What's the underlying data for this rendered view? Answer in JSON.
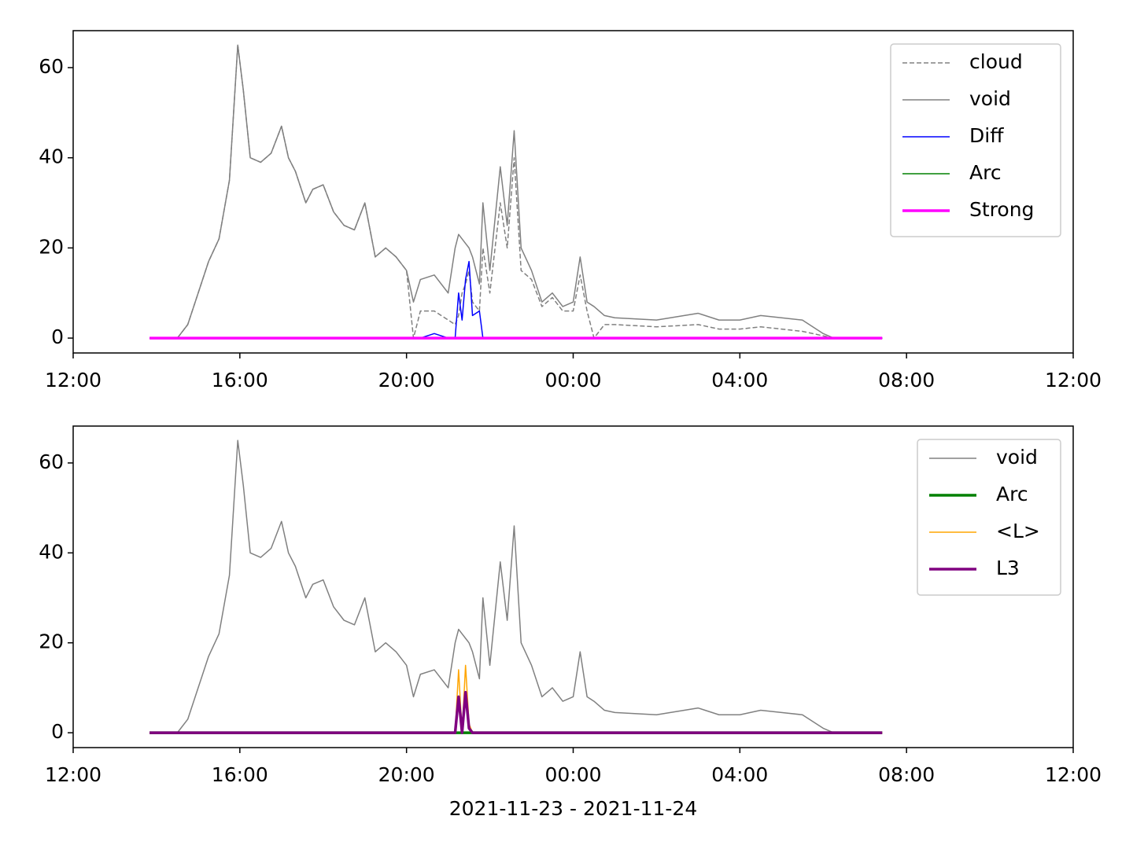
{
  "chart_data": [
    {
      "type": "line",
      "x": [
        "2021-11-23 13:50",
        "2021-11-23 14:30",
        "2021-11-23 14:45",
        "2021-11-23 15:00",
        "2021-11-23 15:15",
        "2021-11-23 15:30",
        "2021-11-23 15:45",
        "2021-11-23 15:57",
        "2021-11-23 16:05",
        "2021-11-23 16:15",
        "2021-11-23 16:30",
        "2021-11-23 16:45",
        "2021-11-23 17:00",
        "2021-11-23 17:10",
        "2021-11-23 17:20",
        "2021-11-23 17:35",
        "2021-11-23 17:45",
        "2021-11-23 18:00",
        "2021-11-23 18:15",
        "2021-11-23 18:30",
        "2021-11-23 18:45",
        "2021-11-23 19:00",
        "2021-11-23 19:15",
        "2021-11-23 19:30",
        "2021-11-23 19:45",
        "2021-11-23 20:00",
        "2021-11-23 20:10",
        "2021-11-23 20:20",
        "2021-11-23 20:40",
        "2021-11-23 21:00",
        "2021-11-23 21:10",
        "2021-11-23 21:15",
        "2021-11-23 21:20",
        "2021-11-23 21:25",
        "2021-11-23 21:30",
        "2021-11-23 21:35",
        "2021-11-23 21:45",
        "2021-11-23 21:50",
        "2021-11-23 22:00",
        "2021-11-23 22:15",
        "2021-11-23 22:25",
        "2021-11-23 22:35",
        "2021-11-23 22:45",
        "2021-11-23 23:00",
        "2021-11-23 23:15",
        "2021-11-23 23:30",
        "2021-11-23 23:45",
        "2021-11-24 00:00",
        "2021-11-24 00:10",
        "2021-11-24 00:20",
        "2021-11-24 00:30",
        "2021-11-24 00:45",
        "2021-11-24 01:00",
        "2021-11-24 02:00",
        "2021-11-24 03:00",
        "2021-11-24 03:30",
        "2021-11-24 04:00",
        "2021-11-24 04:30",
        "2021-11-24 05:00",
        "2021-11-24 05:30",
        "2021-11-24 06:00",
        "2021-11-24 06:15",
        "2021-11-24 07:25"
      ],
      "series": [
        {
          "name": "cloud",
          "color": "#808080",
          "linestyle": "dashed",
          "linewidth": 1.5,
          "values": [
            0,
            0,
            3,
            10,
            17,
            22,
            35,
            65,
            55,
            40,
            39,
            41,
            47,
            40,
            37,
            30,
            33,
            34,
            28,
            25,
            24,
            30,
            18,
            20,
            18,
            15,
            0,
            6,
            6,
            4,
            3,
            5,
            10,
            12,
            15,
            8,
            6,
            20,
            10,
            30,
            20,
            40,
            15,
            13,
            7,
            9,
            6,
            6,
            14,
            6,
            0,
            3,
            3,
            2.5,
            3,
            2,
            2,
            2.5,
            2,
            1.5,
            0.5,
            0,
            0
          ]
        },
        {
          "name": "void",
          "color": "#808080",
          "linewidth": 1.5,
          "values": [
            0,
            0,
            3,
            10,
            17,
            22,
            35,
            65,
            55,
            40,
            39,
            41,
            47,
            40,
            37,
            30,
            33,
            34,
            28,
            25,
            24,
            30,
            18,
            20,
            18,
            15,
            8,
            13,
            14,
            10,
            20,
            23,
            22,
            21,
            20,
            18,
            12,
            30,
            15,
            38,
            25,
            46,
            20,
            15,
            8,
            10,
            7,
            8,
            18,
            8,
            7,
            5,
            4.5,
            4,
            5.5,
            4,
            4,
            5,
            4.5,
            4,
            1,
            0,
            0
          ]
        },
        {
          "name": "Diff",
          "color": "#0000ff",
          "linewidth": 1.5,
          "values": [
            0,
            0,
            0,
            0,
            0,
            0,
            0,
            0,
            0,
            0,
            0,
            0,
            0,
            0,
            0,
            0,
            0,
            0,
            0,
            0,
            0,
            0,
            0,
            0,
            0,
            0,
            0,
            0,
            1,
            0,
            0,
            10,
            4,
            13,
            17,
            5,
            6,
            0,
            0,
            0,
            0,
            0,
            0,
            0,
            0,
            0,
            0,
            0,
            0,
            0,
            0,
            0,
            0,
            0,
            0,
            0,
            0,
            0,
            0,
            0,
            0,
            0,
            0
          ]
        },
        {
          "name": "Arc",
          "color": "#008000",
          "linewidth": 1.5,
          "values": [
            0,
            0,
            0,
            0,
            0,
            0,
            0,
            0,
            0,
            0,
            0,
            0,
            0,
            0,
            0,
            0,
            0,
            0,
            0,
            0,
            0,
            0,
            0,
            0,
            0,
            0,
            0,
            0,
            0,
            0,
            0,
            0,
            0,
            0,
            0,
            0,
            0,
            0,
            0,
            0,
            0,
            0,
            0,
            0,
            0,
            0,
            0,
            0,
            0,
            0,
            0,
            0,
            0,
            0,
            0,
            0,
            0,
            0,
            0,
            0,
            0,
            0,
            0
          ]
        },
        {
          "name": "Strong",
          "color": "#ff00ff",
          "linewidth": 3.5,
          "values": [
            0,
            0,
            0,
            0,
            0,
            0,
            0,
            0,
            0,
            0,
            0,
            0,
            0,
            0,
            0,
            0,
            0,
            0,
            0,
            0,
            0,
            0,
            0,
            0,
            0,
            0,
            0,
            0,
            0,
            0,
            0,
            0,
            0,
            0,
            0,
            0,
            0,
            0,
            0,
            0,
            0,
            0,
            0,
            0,
            0,
            0,
            0,
            0,
            0,
            0,
            0,
            0,
            0,
            0,
            0,
            0,
            0,
            0,
            0,
            0,
            0,
            0,
            0
          ]
        }
      ],
      "xlim": [
        "2021-11-23 12:00",
        "2021-11-24 12:00"
      ],
      "xticks": [
        {
          "value": "2021-11-23 12:00",
          "label": "12:00"
        },
        {
          "value": "2021-11-23 16:00",
          "label": "16:00"
        },
        {
          "value": "2021-11-23 20:00",
          "label": "20:00"
        },
        {
          "value": "2021-11-24 00:00",
          "label": "00:00"
        },
        {
          "value": "2021-11-24 04:00",
          "label": "04:00"
        },
        {
          "value": "2021-11-24 08:00",
          "label": "08:00"
        },
        {
          "value": "2021-11-24 12:00",
          "label": "12:00"
        }
      ],
      "ylim": [
        -3.3,
        68.2
      ],
      "yticks": [
        0,
        20,
        40,
        60
      ],
      "legend": "upper right"
    },
    {
      "type": "line",
      "x": [
        "2021-11-23 13:50",
        "2021-11-23 14:30",
        "2021-11-23 14:45",
        "2021-11-23 15:00",
        "2021-11-23 15:15",
        "2021-11-23 15:30",
        "2021-11-23 15:45",
        "2021-11-23 15:57",
        "2021-11-23 16:05",
        "2021-11-23 16:15",
        "2021-11-23 16:30",
        "2021-11-23 16:45",
        "2021-11-23 17:00",
        "2021-11-23 17:10",
        "2021-11-23 17:20",
        "2021-11-23 17:35",
        "2021-11-23 17:45",
        "2021-11-23 18:00",
        "2021-11-23 18:15",
        "2021-11-23 18:30",
        "2021-11-23 18:45",
        "2021-11-23 19:00",
        "2021-11-23 19:15",
        "2021-11-23 19:30",
        "2021-11-23 19:45",
        "2021-11-23 20:00",
        "2021-11-23 20:10",
        "2021-11-23 20:20",
        "2021-11-23 20:40",
        "2021-11-23 21:00",
        "2021-11-23 21:10",
        "2021-11-23 21:15",
        "2021-11-23 21:20",
        "2021-11-23 21:25",
        "2021-11-23 21:30",
        "2021-11-23 21:35",
        "2021-11-23 21:45",
        "2021-11-23 21:50",
        "2021-11-23 22:00",
        "2021-11-23 22:15",
        "2021-11-23 22:25",
        "2021-11-23 22:35",
        "2021-11-23 22:45",
        "2021-11-23 23:00",
        "2021-11-23 23:15",
        "2021-11-23 23:30",
        "2021-11-23 23:45",
        "2021-11-24 00:00",
        "2021-11-24 00:10",
        "2021-11-24 00:20",
        "2021-11-24 00:30",
        "2021-11-24 00:45",
        "2021-11-24 01:00",
        "2021-11-24 02:00",
        "2021-11-24 03:00",
        "2021-11-24 03:30",
        "2021-11-24 04:00",
        "2021-11-24 04:30",
        "2021-11-24 05:00",
        "2021-11-24 05:30",
        "2021-11-24 06:00",
        "2021-11-24 06:15",
        "2021-11-24 07:25"
      ],
      "series": [
        {
          "name": "void",
          "color": "#808080",
          "linewidth": 1.5,
          "values": [
            0,
            0,
            3,
            10,
            17,
            22,
            35,
            65,
            55,
            40,
            39,
            41,
            47,
            40,
            37,
            30,
            33,
            34,
            28,
            25,
            24,
            30,
            18,
            20,
            18,
            15,
            8,
            13,
            14,
            10,
            20,
            23,
            22,
            21,
            20,
            18,
            12,
            30,
            15,
            38,
            25,
            46,
            20,
            15,
            8,
            10,
            7,
            8,
            18,
            8,
            7,
            5,
            4.5,
            4,
            5.5,
            4,
            4,
            5,
            4.5,
            4,
            1,
            0,
            0
          ]
        },
        {
          "name": "Arc",
          "color": "#008000",
          "linewidth": 3.5,
          "values": [
            0,
            0,
            0,
            0,
            0,
            0,
            0,
            0,
            0,
            0,
            0,
            0,
            0,
            0,
            0,
            0,
            0,
            0,
            0,
            0,
            0,
            0,
            0,
            0,
            0,
            0,
            0,
            0,
            0,
            0,
            0,
            0,
            0,
            0,
            0,
            0,
            0,
            0,
            0,
            0,
            0,
            0,
            0,
            0,
            0,
            0,
            0,
            0,
            0,
            0,
            0,
            0,
            0,
            0,
            0,
            0,
            0,
            0,
            0,
            0,
            0,
            0,
            0
          ]
        },
        {
          "name": "<L>",
          "color": "#ffa500",
          "linewidth": 1.5,
          "values": [
            0,
            0,
            0,
            0,
            0,
            0,
            0,
            0,
            0,
            0,
            0,
            0,
            0,
            0,
            0,
            0,
            0,
            0,
            0,
            0,
            0,
            0,
            0,
            0,
            0,
            0,
            0,
            0,
            0,
            0,
            0,
            14,
            0,
            15,
            2,
            0,
            0,
            0,
            0,
            0,
            0,
            0,
            0,
            0,
            0,
            0,
            0,
            0,
            0,
            0,
            0,
            0,
            0,
            0,
            0,
            0,
            0,
            0,
            0,
            0,
            0,
            0,
            0
          ]
        },
        {
          "name": "L3",
          "color": "#800080",
          "linewidth": 3.5,
          "values": [
            0,
            0,
            0,
            0,
            0,
            0,
            0,
            0,
            0,
            0,
            0,
            0,
            0,
            0,
            0,
            0,
            0,
            0,
            0,
            0,
            0,
            0,
            0,
            0,
            0,
            0,
            0,
            0,
            0,
            0,
            0,
            8,
            0,
            9,
            1,
            0,
            0,
            0,
            0,
            0,
            0,
            0,
            0,
            0,
            0,
            0,
            0,
            0,
            0,
            0,
            0,
            0,
            0,
            0,
            0,
            0,
            0,
            0,
            0,
            0,
            0,
            0,
            0
          ]
        }
      ],
      "xlim": [
        "2021-11-23 12:00",
        "2021-11-24 12:00"
      ],
      "xticks": [
        {
          "value": "2021-11-23 12:00",
          "label": "12:00"
        },
        {
          "value": "2021-11-23 16:00",
          "label": "16:00"
        },
        {
          "value": "2021-11-23 20:00",
          "label": "20:00"
        },
        {
          "value": "2021-11-24 00:00",
          "label": "00:00"
        },
        {
          "value": "2021-11-24 04:00",
          "label": "04:00"
        },
        {
          "value": "2021-11-24 08:00",
          "label": "08:00"
        },
        {
          "value": "2021-11-24 12:00",
          "label": "12:00"
        }
      ],
      "ylim": [
        -3.3,
        68.2
      ],
      "yticks": [
        0,
        20,
        40,
        60
      ],
      "legend": "upper right",
      "xlabel": "2021-11-23 - 2021-11-24"
    }
  ]
}
